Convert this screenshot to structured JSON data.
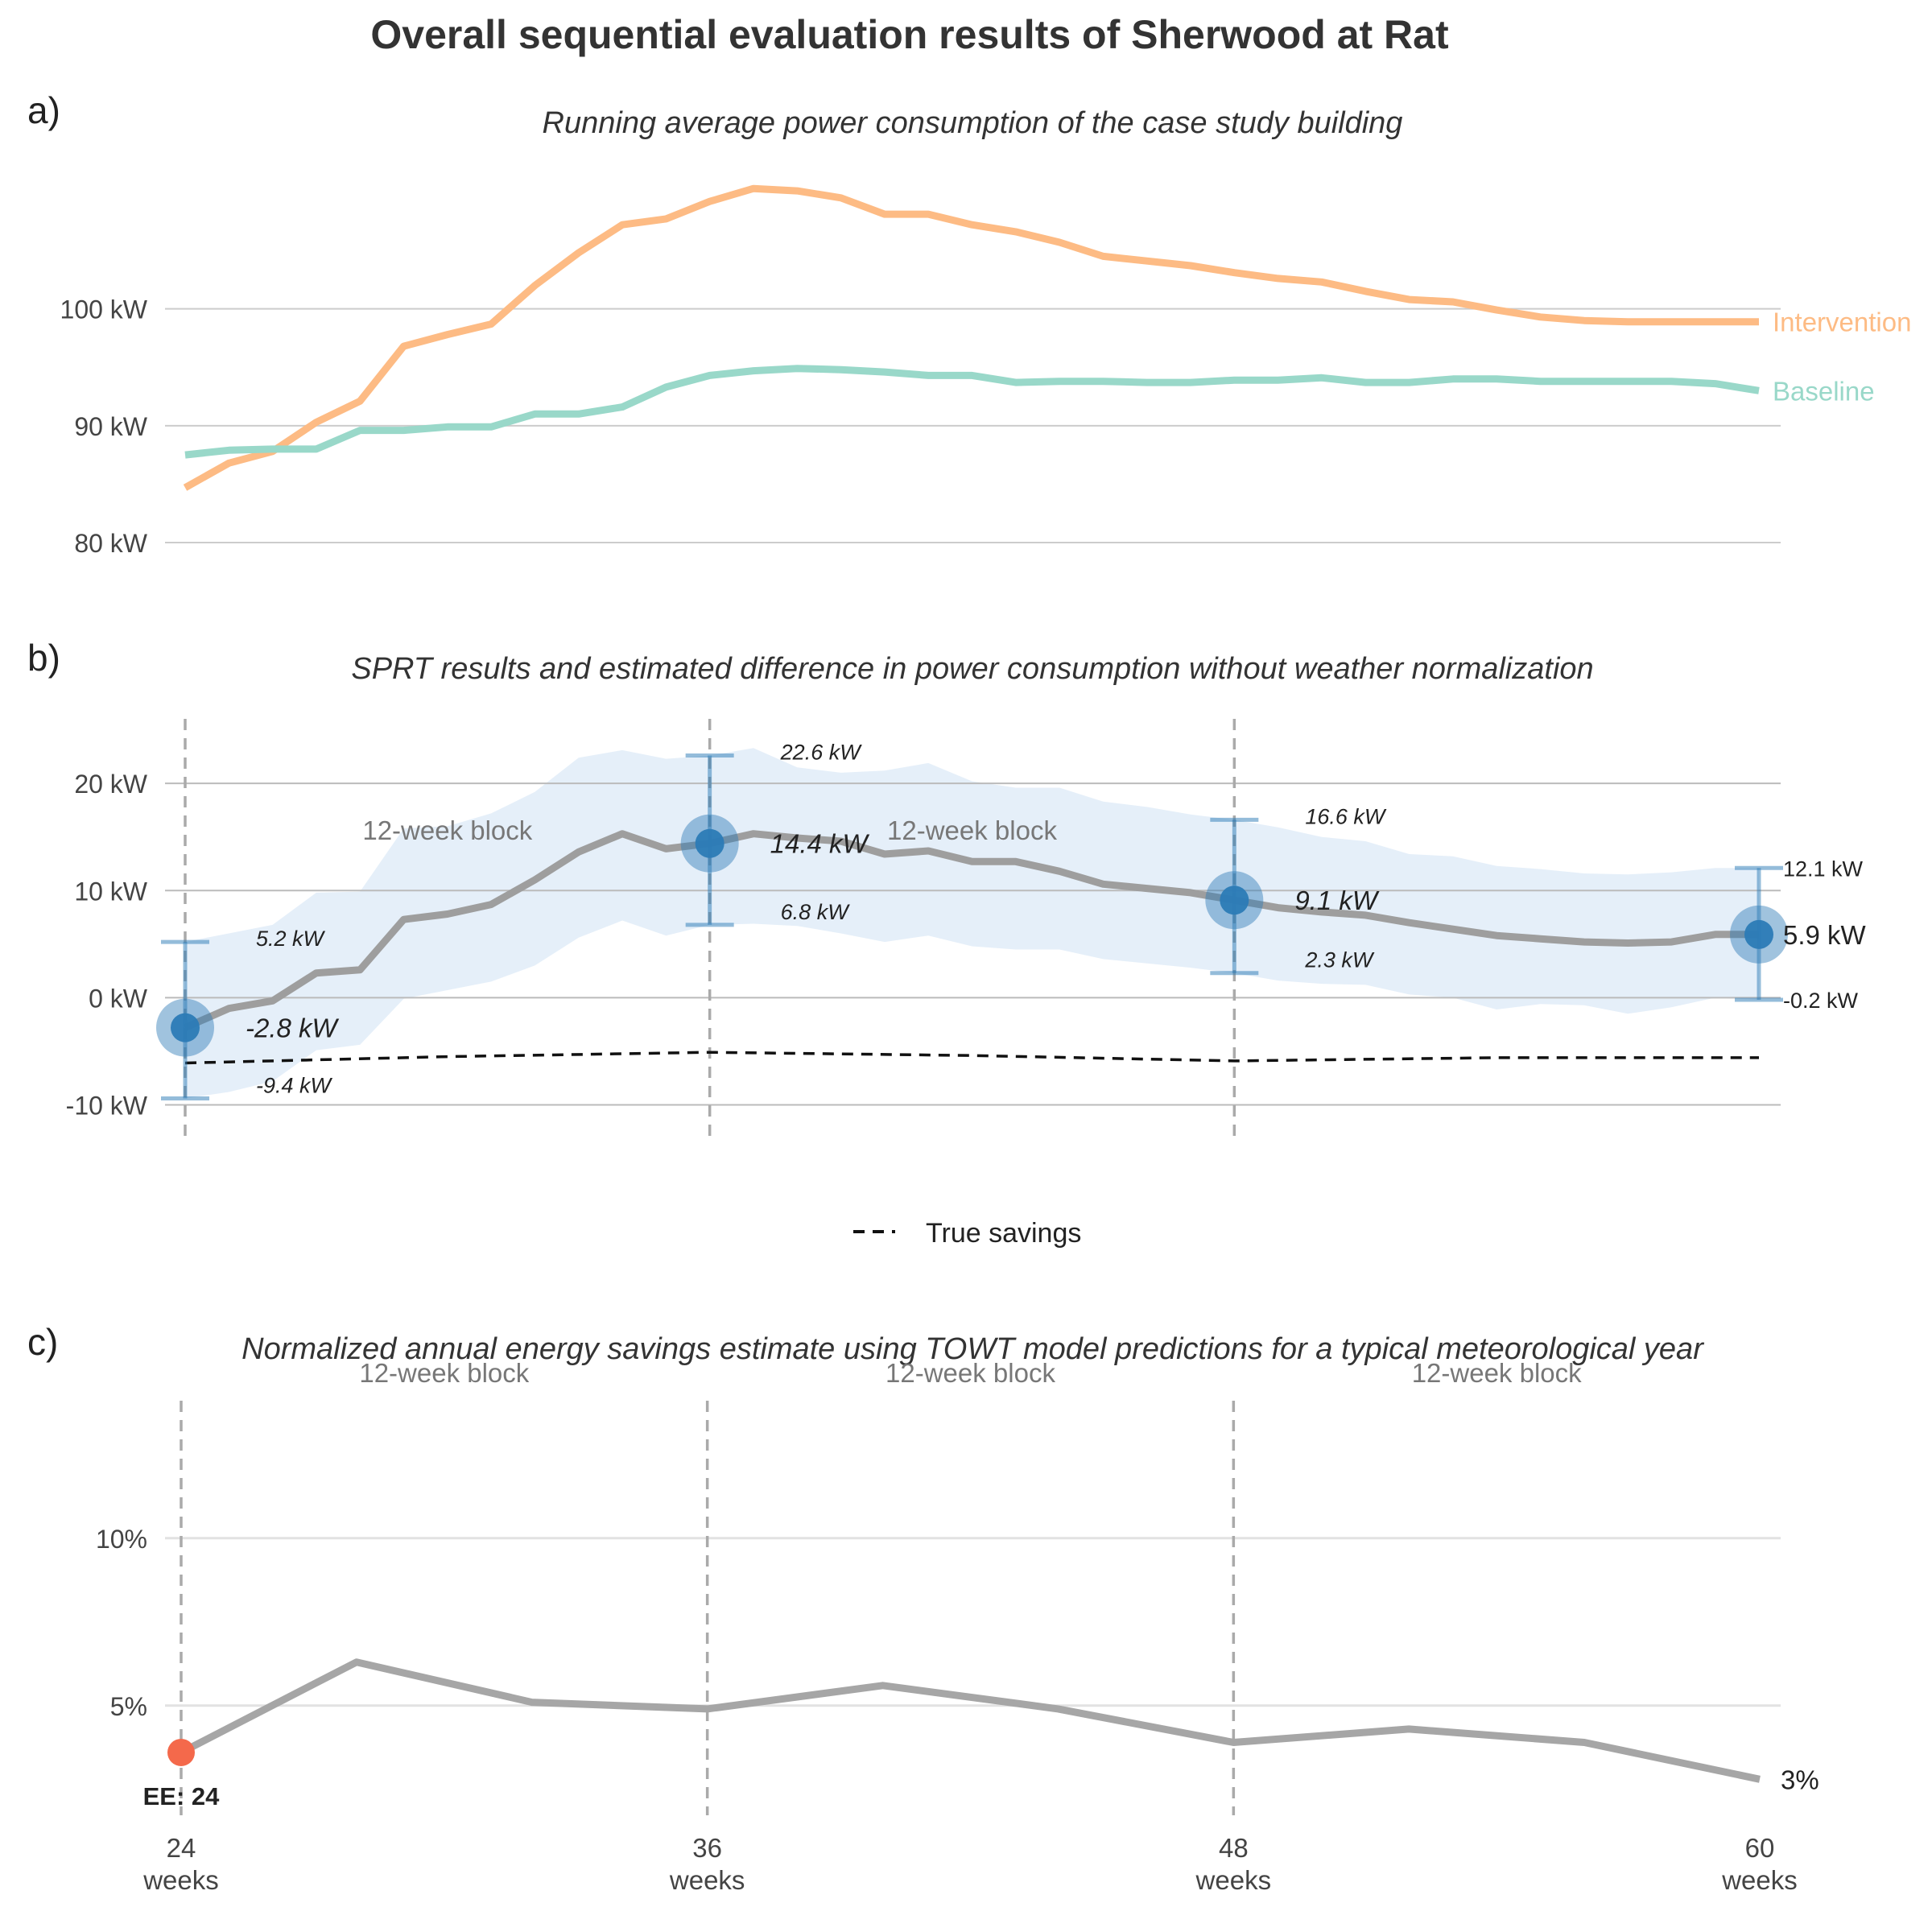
{
  "title": "Overall sequential evaluation results of Sherwood at Rat",
  "panel_a": {
    "tag": "a)",
    "subtitle": "Running average power consumption of the case study building"
  },
  "panel_b": {
    "tag": "b)",
    "subtitle": "SPRT results and estimated difference in power consumption without weather normalization",
    "legend_label": "True savings"
  },
  "panel_c": {
    "tag": "c)",
    "subtitle": "Normalized annual energy savings estimate using TOWT model predictions for a typical meteorological year"
  },
  "colors": {
    "intervention": "#FDBB84",
    "baseline": "#99D8C9",
    "ci_band": "#DEEBF7",
    "estimate_line": "#9E9E9E",
    "point": "#2C7BB6",
    "ee_point": "#F4694B",
    "text": "#333333",
    "grid": "#CCCCCC"
  },
  "chart_data": [
    {
      "type": "line",
      "ylim": [
        78,
        113
      ],
      "yticks": [
        80,
        90,
        100
      ],
      "ytick_labels": [
        "80 kW",
        "90 kW",
        "100 kW"
      ],
      "grid": true,
      "series": [
        {
          "name": "Intervention",
          "x": [
            24,
            25,
            26,
            27,
            28,
            29,
            30,
            31,
            32,
            33,
            34,
            35,
            36,
            37,
            38,
            39,
            40,
            41,
            42,
            43,
            44,
            45,
            46,
            47,
            48,
            49,
            50,
            51,
            52,
            53,
            54,
            55,
            56,
            57,
            58,
            59,
            60
          ],
          "values": [
            84.7,
            86.8,
            87.8,
            90.3,
            92.1,
            96.8,
            97.8,
            98.7,
            102.0,
            104.8,
            107.2,
            107.7,
            109.2,
            110.3,
            110.1,
            109.5,
            108.1,
            108.1,
            107.2,
            106.6,
            105.7,
            104.5,
            104.1,
            103.7,
            103.1,
            102.6,
            102.3,
            101.5,
            100.8,
            100.6,
            99.9,
            99.3,
            99.0,
            98.9,
            98.9,
            98.9,
            98.9
          ]
        },
        {
          "name": "Baseline",
          "x": [
            24,
            25,
            26,
            27,
            28,
            29,
            30,
            31,
            32,
            33,
            34,
            35,
            36,
            37,
            38,
            39,
            40,
            41,
            42,
            43,
            44,
            45,
            46,
            47,
            48,
            49,
            50,
            51,
            52,
            53,
            54,
            55,
            56,
            57,
            58,
            59,
            60
          ],
          "values": [
            87.5,
            87.9,
            88.0,
            88.0,
            89.6,
            89.6,
            89.9,
            89.9,
            91.0,
            91.0,
            91.6,
            93.3,
            94.3,
            94.7,
            94.9,
            94.8,
            94.6,
            94.3,
            94.3,
            93.7,
            93.8,
            93.8,
            93.7,
            93.7,
            93.9,
            93.9,
            94.1,
            93.7,
            93.7,
            94.0,
            94.0,
            93.8,
            93.8,
            93.8,
            93.8,
            93.6,
            93.0
          ]
        }
      ]
    },
    {
      "type": "line",
      "ylim": [
        -15,
        27
      ],
      "yticks": [
        -10,
        0,
        10,
        20
      ],
      "ytick_labels": [
        "-10 kW",
        "0 kW",
        "10 kW",
        "20 kW"
      ],
      "grid": true,
      "block_labels": [
        "12-week block",
        "12-week block"
      ],
      "x": [
        24,
        25,
        26,
        27,
        28,
        29,
        30,
        31,
        32,
        33,
        34,
        35,
        36,
        37,
        38,
        39,
        40,
        41,
        42,
        43,
        44,
        45,
        46,
        47,
        48,
        49,
        50,
        51,
        52,
        53,
        54,
        55,
        56,
        57,
        58,
        59,
        60
      ],
      "estimate": [
        -2.8,
        -1.0,
        -0.3,
        2.3,
        2.6,
        7.3,
        7.8,
        8.7,
        11.0,
        13.6,
        15.3,
        13.9,
        14.4,
        15.3,
        14.9,
        14.6,
        13.4,
        13.7,
        12.7,
        12.7,
        11.8,
        10.6,
        10.2,
        9.8,
        9.1,
        8.4,
        8.0,
        7.7,
        7.0,
        6.4,
        5.8,
        5.5,
        5.2,
        5.1,
        5.2,
        5.9,
        5.9
      ],
      "ci_upper": [
        5.2,
        6.0,
        6.8,
        9.8,
        9.9,
        15.8,
        16.0,
        17.2,
        19.2,
        22.4,
        23.1,
        22.3,
        22.6,
        23.3,
        21.5,
        21.0,
        21.2,
        21.9,
        20.2,
        19.6,
        19.6,
        18.3,
        17.8,
        17.1,
        16.6,
        15.9,
        15.0,
        14.6,
        13.4,
        13.2,
        12.3,
        12.0,
        11.6,
        11.5,
        11.7,
        12.1,
        12.1
      ],
      "ci_lower": [
        -9.4,
        -8.8,
        -7.8,
        -4.9,
        -4.4,
        -0.1,
        0.7,
        1.5,
        3.0,
        5.6,
        7.2,
        5.8,
        6.8,
        6.9,
        6.7,
        6.0,
        5.2,
        5.8,
        4.8,
        4.5,
        4.5,
        3.6,
        3.2,
        2.8,
        2.3,
        1.6,
        1.3,
        1.2,
        0.3,
        0.0,
        -1.1,
        -0.6,
        -0.7,
        -1.5,
        -0.9,
        0.0,
        -0.2
      ],
      "true_savings": {
        "x": [
          24,
          30,
          36,
          42,
          48,
          54,
          60
        ],
        "values": [
          -6.1,
          -5.5,
          -5.1,
          -5.4,
          -5.9,
          -5.6,
          -5.6
        ]
      },
      "checkpoints": [
        {
          "x": 24,
          "estimate": -2.8,
          "upper": 5.2,
          "lower": -9.4,
          "estimate_label": "-2.8 kW",
          "upper_label": "5.2 kW",
          "lower_label": "-9.4 kW"
        },
        {
          "x": 36,
          "estimate": 14.4,
          "upper": 22.6,
          "lower": 6.8,
          "estimate_label": "14.4 kW",
          "upper_label": "22.6 kW",
          "lower_label": "6.8 kW"
        },
        {
          "x": 48,
          "estimate": 9.1,
          "upper": 16.6,
          "lower": 2.3,
          "estimate_label": "9.1 kW",
          "upper_label": "16.6 kW",
          "lower_label": "2.3 kW"
        },
        {
          "x": 60,
          "estimate": 5.9,
          "upper": 12.1,
          "lower": -0.2,
          "estimate_label": "5.9 kW",
          "upper_label": "12.1 kW",
          "lower_label": "-0.2 kW"
        }
      ]
    },
    {
      "type": "line",
      "ylim": [
        1.7,
        14.9
      ],
      "yticks": [
        5,
        10
      ],
      "ytick_labels": [
        "5%",
        "10%"
      ],
      "grid": true,
      "block_labels": [
        "12-week block",
        "12-week block",
        "12-week block"
      ],
      "xticks": [
        24,
        36,
        48,
        60
      ],
      "xtick_labels": [
        [
          "24",
          "weeks"
        ],
        [
          "36",
          "weeks"
        ],
        [
          "48",
          "weeks"
        ],
        [
          "60",
          "weeks"
        ]
      ],
      "x": [
        24,
        28,
        32,
        36,
        40,
        44,
        48,
        52,
        56,
        60
      ],
      "values": [
        3.6,
        6.3,
        5.1,
        4.9,
        5.6,
        4.9,
        3.9,
        4.3,
        3.9,
        2.8
      ],
      "end_label": "3%",
      "ee_point": {
        "x": 24,
        "value": 3.6,
        "label": "EE: 24"
      }
    }
  ]
}
